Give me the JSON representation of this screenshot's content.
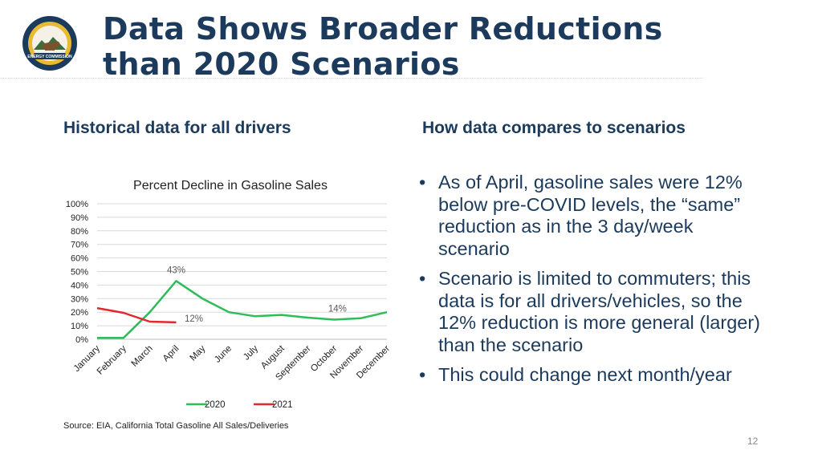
{
  "slide": {
    "title_line1": "Data Shows Broader Reductions",
    "title_line2": "than 2020 Scenarios",
    "left_heading": "Historical data for all drivers",
    "right_heading": "How data compares to scenarios",
    "bullets": [
      "As of April, gasoline sales were 12% below pre-COVID levels, the “same” reduction as in the 3 day/week scenario",
      "Scenario is limited to commuters; this data is for all drivers/vehicles, so the 12% reduction is more general (larger) than the scenario",
      "This could change next month/year"
    ],
    "source": "Source: EIA, California Total Gasoline All Sales/Deliveries",
    "page_number": "12",
    "logo_text": "ENERGY COMMISSION"
  },
  "colors": {
    "title": "#1b3a5c",
    "series_2020": "#2dbd5a",
    "series_2021": "#e0282e",
    "grid": "#d9d9d9"
  },
  "chart_data": {
    "type": "line",
    "title": "Percent Decline in Gasoline Sales",
    "categories": [
      "January",
      "February",
      "March",
      "April",
      "May",
      "June",
      "July",
      "August",
      "September",
      "October",
      "November",
      "December"
    ],
    "yticks": [
      "0%",
      "10%",
      "20%",
      "30%",
      "40%",
      "50%",
      "60%",
      "70%",
      "80%",
      "90%",
      "100%"
    ],
    "ylim": [
      0,
      100
    ],
    "grid": true,
    "legend_position": "bottom",
    "series": [
      {
        "name": "2020",
        "values": [
          1,
          1,
          20,
          43,
          30,
          20,
          17,
          18,
          16,
          14.5,
          15.5,
          20
        ]
      },
      {
        "name": "2021",
        "values": [
          23,
          19.5,
          13,
          12.5,
          null,
          null,
          null,
          null,
          null,
          null,
          null,
          null
        ]
      }
    ],
    "annotations": [
      {
        "series": 0,
        "index": 3,
        "text": "43%"
      },
      {
        "series": 0,
        "index": 9,
        "text": "14%"
      },
      {
        "series": 1,
        "index": 3,
        "text": "12%"
      }
    ]
  }
}
